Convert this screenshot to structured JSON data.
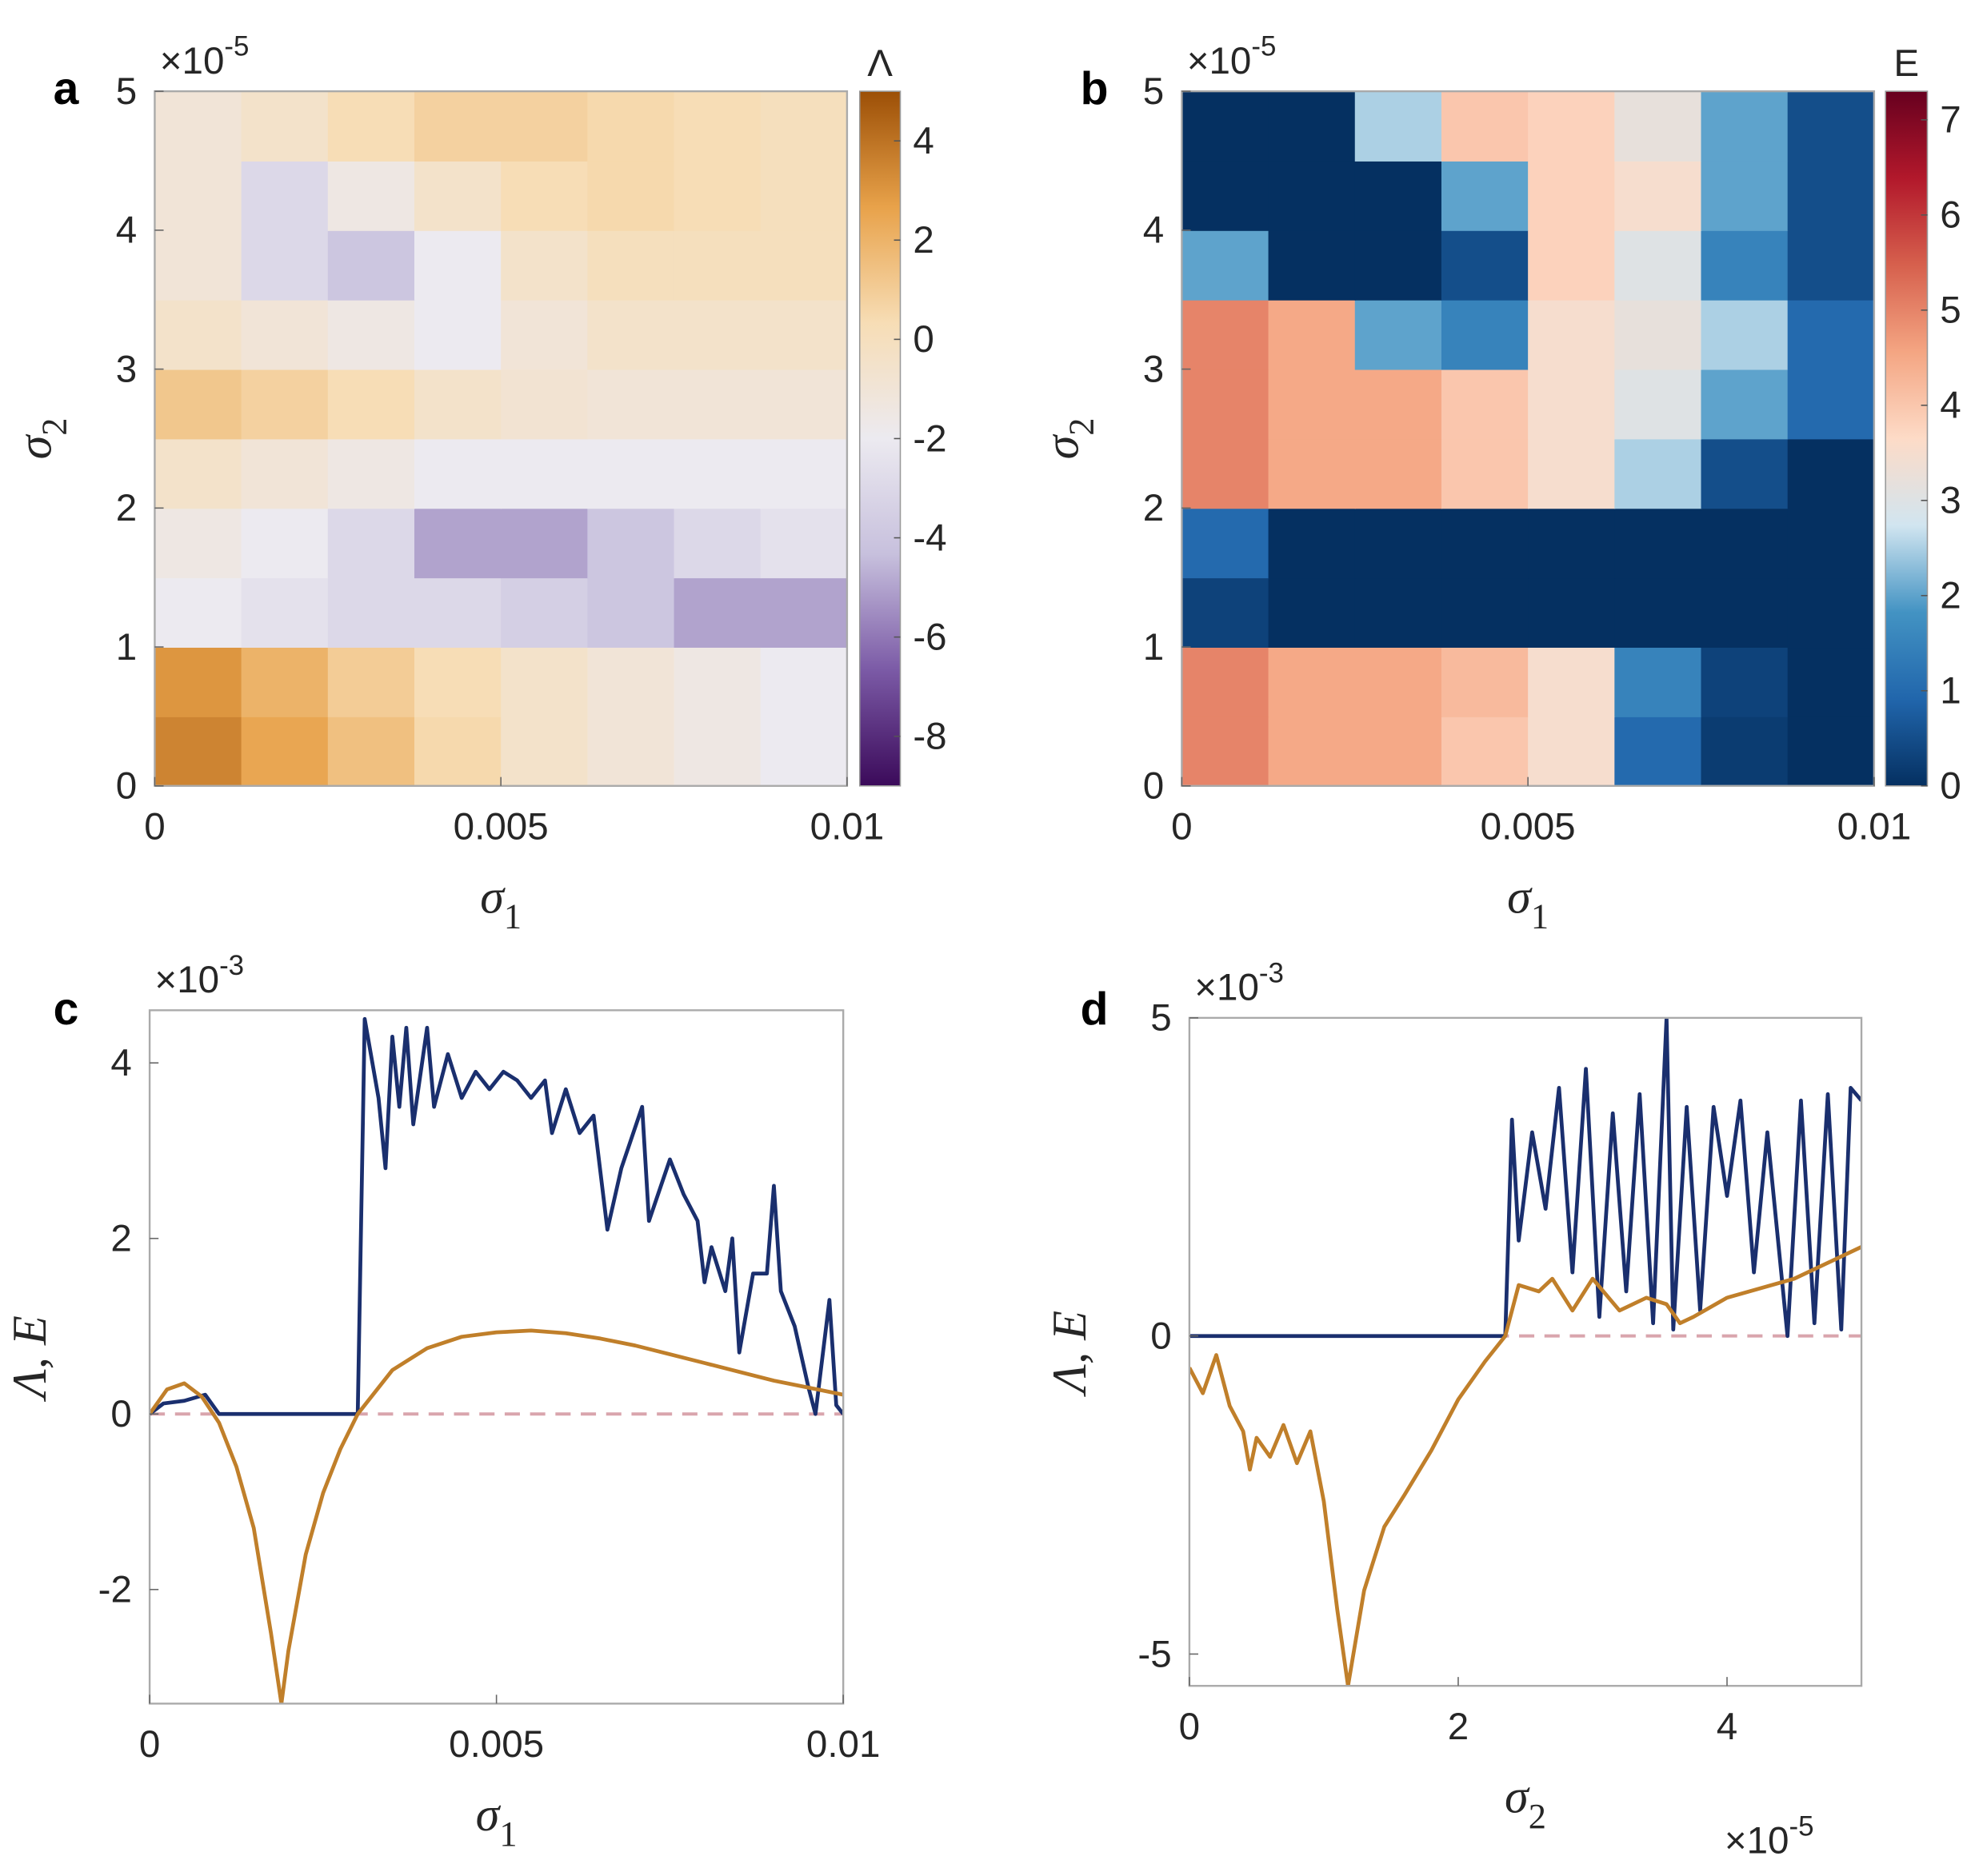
{
  "chart_data": [
    {
      "type": "heatmap",
      "panel_label": "a",
      "xlabel": [
        "σ",
        "1"
      ],
      "ylabel": [
        "σ",
        "2"
      ],
      "y_multiplier": {
        "base": "×10",
        "exponent": "-5"
      },
      "xlim": [
        0,
        0.01
      ],
      "xticks": [
        0,
        0.005,
        0.01
      ],
      "ylim": [
        0,
        5
      ],
      "yticks": [
        0,
        1,
        2,
        3,
        4,
        5
      ],
      "x": [
        0.000625,
        0.001875,
        0.003125,
        0.004375,
        0.005625,
        0.006875,
        0.008125,
        0.009375
      ],
      "y": [
        0.25,
        0.75,
        1.25,
        1.75,
        2.25,
        2.75,
        3.25,
        3.75,
        4.25,
        4.75
      ],
      "z": [
        [
          3.5,
          2.5,
          1.5,
          0.5,
          -0.5,
          -1,
          -1.5,
          -2
        ],
        [
          3,
          2,
          1,
          0.3,
          -0.5,
          -1,
          -1.5,
          -2
        ],
        [
          -2,
          -2.5,
          -3,
          -3,
          -3.5,
          -4,
          -5,
          -5
        ],
        [
          -1.5,
          -2,
          -3,
          -5,
          -5,
          -4,
          -3,
          -2.5
        ],
        [
          -0.5,
          -1,
          -1.5,
          -2,
          -2,
          -2,
          -2,
          -2
        ],
        [
          1.2,
          0.8,
          0.3,
          -0.5,
          -0.8,
          -1,
          -1,
          -1
        ],
        [
          -0.5,
          -1,
          -1.5,
          -2,
          -1,
          -0.5,
          -0.5,
          -0.5
        ],
        [
          -1,
          -3,
          -4,
          -2,
          -0.5,
          0,
          0,
          0
        ],
        [
          -1,
          -3,
          -1.5,
          -0.5,
          0.3,
          0.5,
          0.3,
          0
        ],
        [
          -1,
          -0.5,
          0.3,
          0.8,
          0.8,
          0.5,
          0.3,
          0
        ]
      ],
      "colorbar_label": "Λ",
      "clim": [
        -9,
        5
      ],
      "cticks": [
        -8,
        -6,
        -4,
        -2,
        0,
        2,
        4
      ],
      "colormap": [
        "#3b0a5a",
        "#7b5aa6",
        "#c7c0dd",
        "#eceaf0",
        "#f7ddb5",
        "#e8a24a",
        "#9c4f06"
      ]
    },
    {
      "type": "heatmap",
      "panel_label": "b",
      "xlabel": [
        "σ",
        "1"
      ],
      "ylabel": [
        "σ",
        "2"
      ],
      "y_multiplier": {
        "base": "×10",
        "exponent": "-5"
      },
      "xlim": [
        0,
        0.01
      ],
      "xticks": [
        0,
        0.005,
        0.01
      ],
      "ylim": [
        0,
        5
      ],
      "yticks": [
        0,
        1,
        2,
        3,
        4,
        5
      ],
      "x": [
        0.000625,
        0.001875,
        0.003125,
        0.004375,
        0.005625,
        0.006875,
        0.008125,
        0.009375
      ],
      "y": [
        0.25,
        0.75,
        1.25,
        1.75,
        2.25,
        2.75,
        3.25,
        3.75,
        4.25,
        4.75
      ],
      "z": [
        [
          5,
          4.5,
          4.5,
          4,
          3.5,
          1,
          0.2,
          0
        ],
        [
          5,
          4.5,
          4.5,
          4.2,
          3.5,
          1.5,
          0.3,
          0
        ],
        [
          0.3,
          0,
          0,
          0,
          0,
          0,
          0,
          0
        ],
        [
          1,
          0,
          0,
          0,
          0,
          0,
          0,
          0
        ],
        [
          5,
          4.5,
          4.5,
          4,
          3.5,
          2.5,
          0.5,
          0
        ],
        [
          5,
          4.5,
          4.5,
          4,
          3.5,
          3,
          2,
          1
        ],
        [
          5,
          4.5,
          2,
          1.5,
          3.5,
          3.2,
          2.5,
          1
        ],
        [
          2,
          0,
          0,
          0.5,
          3.8,
          3,
          1.5,
          0.5
        ],
        [
          0,
          0,
          0,
          2,
          3.8,
          3.5,
          2,
          0.5
        ],
        [
          0,
          0,
          2.5,
          4,
          3.8,
          3.2,
          2,
          0.5
        ]
      ],
      "colorbar_label": "E",
      "clim": [
        0,
        7.3
      ],
      "cticks": [
        0,
        1,
        2,
        3,
        4,
        5,
        6,
        7
      ],
      "colormap": [
        "#053061",
        "#2166ac",
        "#4393c3",
        "#d1e5f0",
        "#fddbc7",
        "#f4a582",
        "#d6604d",
        "#b2182b",
        "#67001f"
      ]
    },
    {
      "type": "line",
      "panel_label": "c",
      "xlabel": [
        "σ",
        "1"
      ],
      "ylabel": "Λ, E",
      "y_multiplier": {
        "base": "×10",
        "exponent": "-3"
      },
      "xlim": [
        0,
        0.01
      ],
      "xticks": [
        0,
        0.005,
        0.01
      ],
      "ylim": [
        -3.3,
        4.6
      ],
      "yticks": [
        -2,
        0,
        2,
        4
      ],
      "reference_line": {
        "y": 0,
        "color": "#d9a5ad"
      },
      "series": [
        {
          "color": "#1a2f6e",
          "x": [
            0,
            0.0002,
            0.0005,
            0.0008,
            0.001,
            0.003,
            0.0031,
            0.0033,
            0.0034,
            0.0035,
            0.0036,
            0.0037,
            0.0038,
            0.004,
            0.0041,
            0.0043,
            0.0045,
            0.0047,
            0.0049,
            0.0051,
            0.0053,
            0.0055,
            0.0057,
            0.0058,
            0.006,
            0.0062,
            0.0064,
            0.0066,
            0.0068,
            0.0071,
            0.0072,
            0.0075,
            0.0077,
            0.0079,
            0.008,
            0.0081,
            0.0083,
            0.0084,
            0.0085,
            0.0087,
            0.0089,
            0.009,
            0.0091,
            0.0093,
            0.0095,
            0.0096,
            0.0098,
            0.0099,
            0.01
          ],
          "values": [
            0,
            0.12,
            0.15,
            0.22,
            0,
            0,
            4.5,
            3.6,
            2.8,
            4.3,
            3.5,
            4.4,
            3.3,
            4.4,
            3.5,
            4.1,
            3.6,
            3.9,
            3.7,
            3.9,
            3.8,
            3.6,
            3.8,
            3.2,
            3.7,
            3.2,
            3.4,
            2.1,
            2.8,
            3.5,
            2.2,
            2.9,
            2.5,
            2.2,
            1.5,
            1.9,
            1.4,
            2,
            0.7,
            1.6,
            1.6,
            2.6,
            1.4,
            1,
            0.3,
            0,
            1.3,
            0.1,
            0
          ]
        },
        {
          "color": "#c07f2a",
          "x": [
            0,
            0.00025,
            0.0005,
            0.00075,
            0.001,
            0.00125,
            0.0015,
            0.00175,
            0.0019,
            0.002,
            0.00225,
            0.0025,
            0.00275,
            0.003,
            0.0035,
            0.004,
            0.0045,
            0.005,
            0.0055,
            0.006,
            0.0065,
            0.007,
            0.0075,
            0.008,
            0.0085,
            0.009,
            0.0095,
            0.01
          ],
          "values": [
            0,
            0.28,
            0.35,
            0.2,
            -0.1,
            -0.6,
            -1.3,
            -2.5,
            -3.3,
            -2.7,
            -1.6,
            -0.9,
            -0.4,
            0,
            0.5,
            0.75,
            0.88,
            0.93,
            0.95,
            0.92,
            0.86,
            0.78,
            0.68,
            0.58,
            0.48,
            0.38,
            0.3,
            0.22
          ]
        }
      ]
    },
    {
      "type": "line",
      "panel_label": "d",
      "xlabel": [
        "σ",
        "2"
      ],
      "ylabel": "Λ, E",
      "y_multiplier": {
        "base": "×10",
        "exponent": "-3"
      },
      "x_multiplier": {
        "base": "×10",
        "exponent": "-5"
      },
      "xlim": [
        0,
        5
      ],
      "xticks": [
        0,
        2,
        4
      ],
      "ylim": [
        -5.5,
        5
      ],
      "yticks": [
        -5,
        0,
        5
      ],
      "reference_line": {
        "y": 0,
        "color": "#d9a5ad"
      },
      "series": [
        {
          "color": "#1a2f6e",
          "x": [
            0,
            2.35,
            2.4,
            2.45,
            2.55,
            2.65,
            2.75,
            2.85,
            2.95,
            3.05,
            3.15,
            3.25,
            3.35,
            3.45,
            3.55,
            3.6,
            3.7,
            3.8,
            3.9,
            4,
            4.1,
            4.2,
            4.3,
            4.45,
            4.55,
            4.65,
            4.75,
            4.85,
            4.92,
            5
          ],
          "values": [
            0,
            0,
            3.4,
            1.5,
            3.2,
            2,
            3.9,
            1,
            4.2,
            0.3,
            3.5,
            0.7,
            3.8,
            0.2,
            5,
            0.1,
            3.6,
            0.4,
            3.6,
            2.2,
            3.7,
            1,
            3.2,
            0,
            3.7,
            0.2,
            3.8,
            0.1,
            3.9,
            3.7
          ]
        },
        {
          "color": "#c07f2a",
          "x": [
            0,
            0.1,
            0.2,
            0.3,
            0.4,
            0.45,
            0.5,
            0.6,
            0.7,
            0.8,
            0.9,
            1,
            1.1,
            1.18,
            1.3,
            1.45,
            1.6,
            1.8,
            2,
            2.2,
            2.35,
            2.45,
            2.6,
            2.7,
            2.85,
            3,
            3.2,
            3.4,
            3.55,
            3.65,
            3.75,
            4,
            4.5,
            5
          ],
          "values": [
            -0.5,
            -0.9,
            -0.3,
            -1.1,
            -1.5,
            -2.1,
            -1.6,
            -1.9,
            -1.4,
            -2,
            -1.5,
            -2.6,
            -4.3,
            -5.5,
            -4,
            -3,
            -2.5,
            -1.8,
            -1,
            -0.4,
            0,
            0.8,
            0.7,
            0.9,
            0.4,
            0.9,
            0.4,
            0.6,
            0.5,
            0.2,
            0.3,
            0.6,
            0.9,
            1.4
          ]
        }
      ]
    }
  ]
}
